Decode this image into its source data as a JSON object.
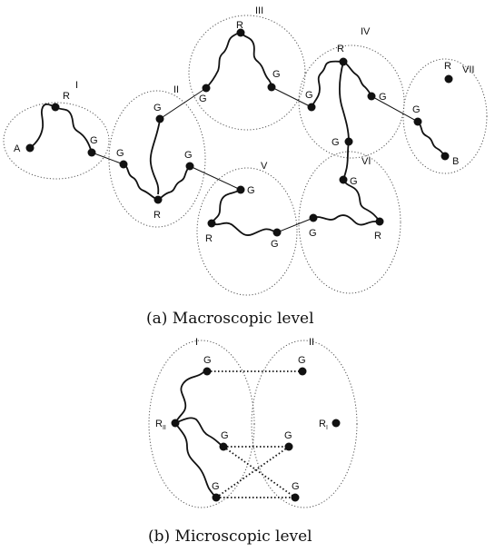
{
  "captions": {
    "a": "(a) Macroscopic level",
    "b": "(b) Microscopic level"
  },
  "macro": {
    "regions": [
      "I",
      "II",
      "III",
      "IV",
      "V",
      "VI",
      "VII"
    ],
    "nodes": {
      "A": "A",
      "R_I": "R",
      "G_I": "G",
      "G_IIa": "G",
      "G_IIb": "G",
      "G_IIc": "G",
      "R_II": "R",
      "G_IIIa": "G",
      "R_III": "R",
      "G_IIIb": "G",
      "G_IVa": "G",
      "R_IV": "R",
      "G_IVb": "G",
      "G_IVc": "G",
      "G_Va": "G",
      "R_V": "R",
      "G_Vb": "G",
      "G_VIa": "G",
      "G_VIb": "G",
      "R_VI": "R",
      "R_VII": "R",
      "G_VII": "G",
      "B": "B"
    }
  },
  "micro": {
    "regions": [
      "I",
      "II"
    ],
    "nodes": {
      "G1": "G",
      "G2": "G",
      "R_II_main": "R",
      "R_II_sub": "II",
      "G3": "G",
      "G4": "G",
      "R_I_main": "R",
      "R_I_sub": "I",
      "G5": "G",
      "G6": "G"
    }
  }
}
